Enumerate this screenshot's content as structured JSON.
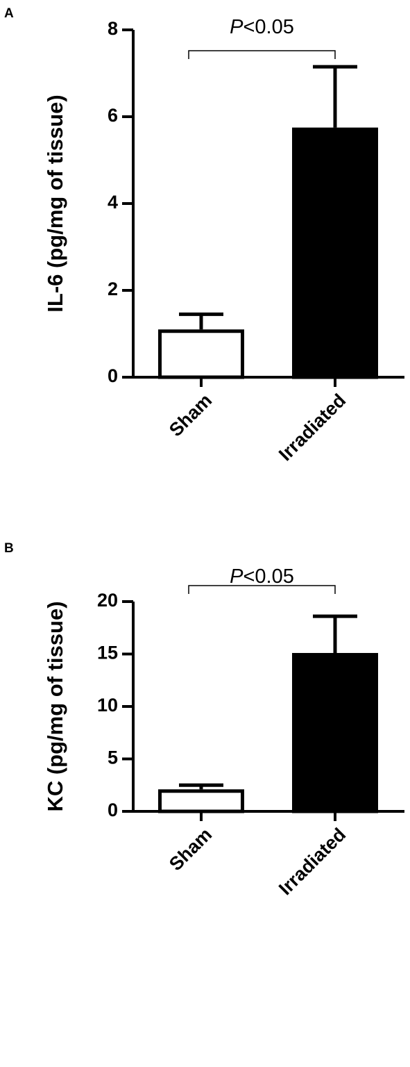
{
  "chart_data": [
    {
      "type": "bar",
      "panel_label": "A",
      "annotation": "P<0.05",
      "ylabel": "IL-6 (pg/mg of tissue)",
      "categories": [
        "Sham",
        "Irradiated"
      ],
      "values": [
        1.1,
        5.75
      ],
      "errors": [
        0.35,
        1.4
      ],
      "colors": [
        "#ffffff",
        "#000000"
      ],
      "ylim": [
        0,
        8
      ],
      "yticks": [
        0,
        2,
        4,
        6,
        8
      ]
    },
    {
      "type": "bar",
      "panel_label": "B",
      "annotation": "P<0.05",
      "ylabel": "KC (pg/mg of tissue)",
      "categories": [
        "Sham",
        "Irradiated"
      ],
      "values": [
        2.1,
        15.1
      ],
      "errors": [
        0.4,
        3.5
      ],
      "colors": [
        "#ffffff",
        "#000000"
      ],
      "ylim": [
        0,
        20
      ],
      "yticks": [
        0,
        5,
        10,
        15,
        20
      ]
    }
  ]
}
